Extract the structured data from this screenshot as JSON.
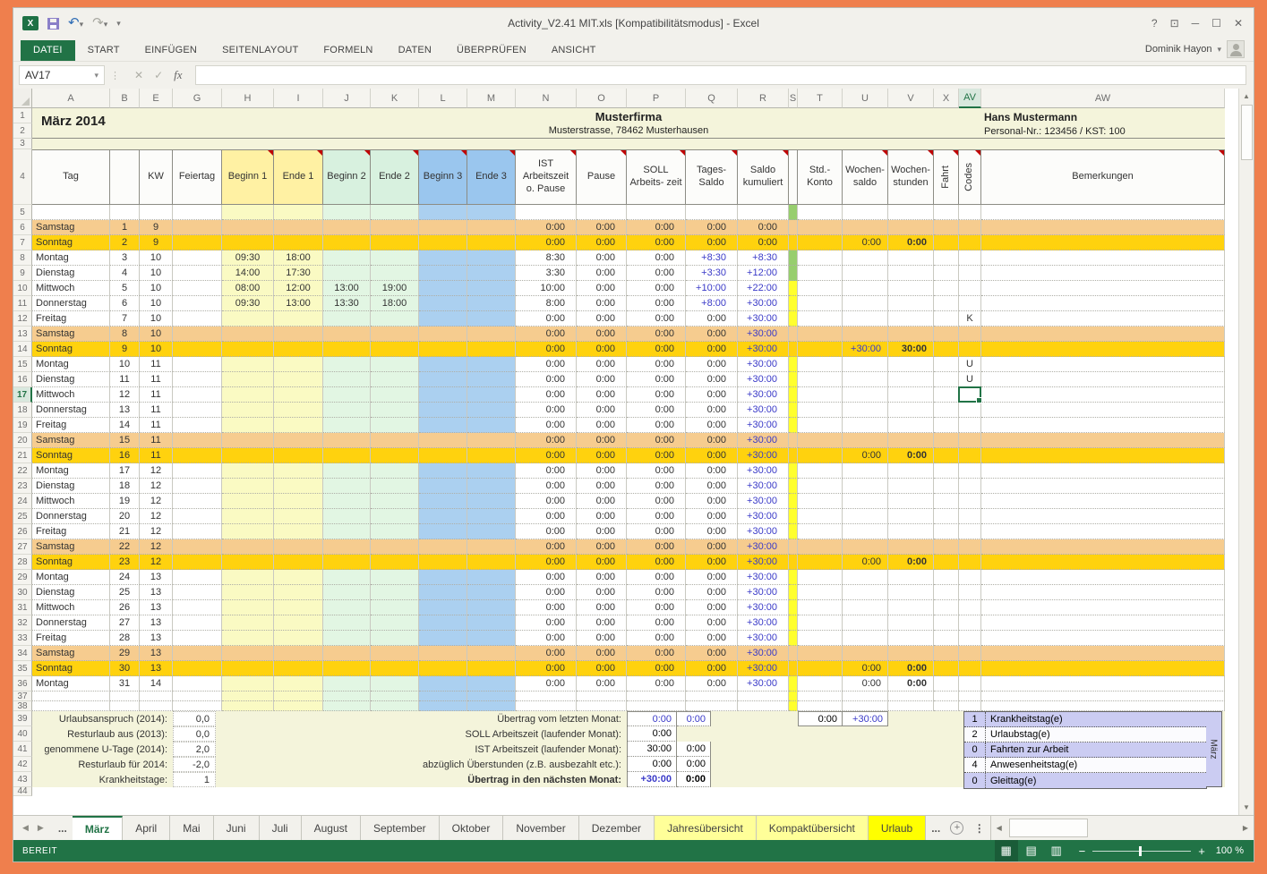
{
  "window": {
    "title": "Activity_V2.41 MIT.xls  [Kompatibilitätsmodus] - Excel",
    "user": "Dominik Hayon",
    "controls": {
      "help": "?",
      "ribbon_options": "⊡",
      "minimize": "─",
      "maximize": "☐",
      "close": "✕"
    }
  },
  "ribbon": {
    "tabs": [
      {
        "label": "DATEI",
        "active": true
      },
      {
        "label": "START",
        "active": false
      },
      {
        "label": "EINFÜGEN",
        "active": false
      },
      {
        "label": "SEITENLAYOUT",
        "active": false
      },
      {
        "label": "FORMELN",
        "active": false
      },
      {
        "label": "DATEN",
        "active": false
      },
      {
        "label": "ÜBERPRÜFEN",
        "active": false
      },
      {
        "label": "ANSICHT",
        "active": false
      }
    ]
  },
  "formula_bar": {
    "name_box": "AV17",
    "cancel": "✕",
    "enter": "✓",
    "fx": "fx",
    "value": ""
  },
  "grid": {
    "column_letters": [
      "A",
      "B",
      "E",
      "G",
      "H",
      "I",
      "J",
      "K",
      "L",
      "M",
      "N",
      "O",
      "P",
      "Q",
      "R",
      "S",
      "T",
      "U",
      "V",
      "X",
      "AV",
      "AW"
    ],
    "selected_column": "AV",
    "selected_row": 17
  },
  "sheet_header": {
    "month": "März 2014",
    "company": "Musterfirma",
    "address": "Musterstrasse, 78462 Musterhausen",
    "employee": "Hans Mustermann",
    "personal_nr": "Personal-Nr.: 123456 / KST: 100"
  },
  "table_headers": [
    "Tag",
    "",
    "KW",
    "Feiertag",
    "Beginn 1",
    "Ende 1",
    "Beginn 2",
    "Ende 2",
    "Beginn 3",
    "Ende 3",
    "IST Arbeitszeit o. Pause",
    "Pause",
    "SOLL Arbeits- zeit",
    "Tages- Saldo",
    "Saldo kumuliert",
    "",
    "Std.- Konto",
    "Wochen- saldo",
    "Wochen- stunden",
    "Fahrt",
    "Codes",
    "Bemerkungen"
  ],
  "days": [
    {
      "day": "Samstag",
      "num": "1",
      "kw": "9",
      "type": "sat",
      "b1": "",
      "e1": "",
      "b2": "",
      "e2": "",
      "ist": "0:00",
      "pa": "0:00",
      "so": "0:00",
      "tg": "0:00",
      "sk": "0:00",
      "ws": "",
      "wh": "",
      "code": "",
      "mark": "g"
    },
    {
      "day": "Sonntag",
      "num": "2",
      "kw": "9",
      "type": "sun",
      "b1": "",
      "e1": "",
      "b2": "",
      "e2": "",
      "ist": "0:00",
      "pa": "0:00",
      "so": "0:00",
      "tg": "0:00",
      "sk": "0:00",
      "ws": "0:00",
      "wh": "0:00",
      "code": "",
      "mark": "g"
    },
    {
      "day": "Montag",
      "num": "3",
      "kw": "10",
      "type": "wd",
      "b1": "09:30",
      "e1": "18:00",
      "b2": "",
      "e2": "",
      "ist": "8:30",
      "pa": "0:00",
      "so": "0:00",
      "tg": "+8:30",
      "sk": "+8:30",
      "ws": "",
      "wh": "",
      "code": "",
      "mark": "g"
    },
    {
      "day": "Dienstag",
      "num": "4",
      "kw": "10",
      "type": "wd",
      "b1": "14:00",
      "e1": "17:30",
      "b2": "",
      "e2": "",
      "ist": "3:30",
      "pa": "0:00",
      "so": "0:00",
      "tg": "+3:30",
      "sk": "+12:00",
      "ws": "",
      "wh": "",
      "code": "",
      "mark": "g"
    },
    {
      "day": "Mittwoch",
      "num": "5",
      "kw": "10",
      "type": "wd",
      "b1": "08:00",
      "e1": "12:00",
      "b2": "13:00",
      "e2": "19:00",
      "ist": "10:00",
      "pa": "0:00",
      "so": "0:00",
      "tg": "+10:00",
      "sk": "+22:00",
      "ws": "",
      "wh": "",
      "code": "",
      "mark": "y"
    },
    {
      "day": "Donnerstag",
      "num": "6",
      "kw": "10",
      "type": "wd",
      "b1": "09:30",
      "e1": "13:00",
      "b2": "13:30",
      "e2": "18:00",
      "ist": "8:00",
      "pa": "0:00",
      "so": "0:00",
      "tg": "+8:00",
      "sk": "+30:00",
      "ws": "",
      "wh": "",
      "code": "",
      "mark": "y"
    },
    {
      "day": "Freitag",
      "num": "7",
      "kw": "10",
      "type": "wd",
      "b1": "",
      "e1": "",
      "b2": "",
      "e2": "",
      "ist": "0:00",
      "pa": "0:00",
      "so": "0:00",
      "tg": "0:00",
      "sk": "+30:00",
      "ws": "",
      "wh": "",
      "code": "K",
      "mark": "y"
    },
    {
      "day": "Samstag",
      "num": "8",
      "kw": "10",
      "type": "sat",
      "b1": "",
      "e1": "",
      "b2": "",
      "e2": "",
      "ist": "0:00",
      "pa": "0:00",
      "so": "0:00",
      "tg": "0:00",
      "sk": "+30:00",
      "ws": "",
      "wh": "",
      "code": "",
      "mark": "y"
    },
    {
      "day": "Sonntag",
      "num": "9",
      "kw": "10",
      "type": "sun",
      "b1": "",
      "e1": "",
      "b2": "",
      "e2": "",
      "ist": "0:00",
      "pa": "0:00",
      "so": "0:00",
      "tg": "0:00",
      "sk": "+30:00",
      "ws": "+30:00",
      "wh": "30:00",
      "code": "",
      "mark": "y"
    },
    {
      "day": "Montag",
      "num": "10",
      "kw": "11",
      "type": "wd",
      "b1": "",
      "e1": "",
      "b2": "",
      "e2": "",
      "ist": "0:00",
      "pa": "0:00",
      "so": "0:00",
      "tg": "0:00",
      "sk": "+30:00",
      "ws": "",
      "wh": "",
      "code": "U",
      "mark": "y"
    },
    {
      "day": "Dienstag",
      "num": "11",
      "kw": "11",
      "type": "wd",
      "b1": "",
      "e1": "",
      "b2": "",
      "e2": "",
      "ist": "0:00",
      "pa": "0:00",
      "so": "0:00",
      "tg": "0:00",
      "sk": "+30:00",
      "ws": "",
      "wh": "",
      "code": "U",
      "mark": "y"
    },
    {
      "day": "Mittwoch",
      "num": "12",
      "kw": "11",
      "type": "wd",
      "b1": "",
      "e1": "",
      "b2": "",
      "e2": "",
      "ist": "0:00",
      "pa": "0:00",
      "so": "0:00",
      "tg": "0:00",
      "sk": "+30:00",
      "ws": "",
      "wh": "",
      "code": "",
      "mark": "y"
    },
    {
      "day": "Donnerstag",
      "num": "13",
      "kw": "11",
      "type": "wd",
      "b1": "",
      "e1": "",
      "b2": "",
      "e2": "",
      "ist": "0:00",
      "pa": "0:00",
      "so": "0:00",
      "tg": "0:00",
      "sk": "+30:00",
      "ws": "",
      "wh": "",
      "code": "",
      "mark": "y"
    },
    {
      "day": "Freitag",
      "num": "14",
      "kw": "11",
      "type": "wd",
      "b1": "",
      "e1": "",
      "b2": "",
      "e2": "",
      "ist": "0:00",
      "pa": "0:00",
      "so": "0:00",
      "tg": "0:00",
      "sk": "+30:00",
      "ws": "",
      "wh": "",
      "code": "",
      "mark": "y"
    },
    {
      "day": "Samstag",
      "num": "15",
      "kw": "11",
      "type": "sat",
      "b1": "",
      "e1": "",
      "b2": "",
      "e2": "",
      "ist": "0:00",
      "pa": "0:00",
      "so": "0:00",
      "tg": "0:00",
      "sk": "+30:00",
      "ws": "",
      "wh": "",
      "code": "",
      "mark": "y"
    },
    {
      "day": "Sonntag",
      "num": "16",
      "kw": "11",
      "type": "sun",
      "b1": "",
      "e1": "",
      "b2": "",
      "e2": "",
      "ist": "0:00",
      "pa": "0:00",
      "so": "0:00",
      "tg": "0:00",
      "sk": "+30:00",
      "ws": "0:00",
      "wh": "0:00",
      "code": "",
      "mark": "y"
    },
    {
      "day": "Montag",
      "num": "17",
      "kw": "12",
      "type": "wd",
      "b1": "",
      "e1": "",
      "b2": "",
      "e2": "",
      "ist": "0:00",
      "pa": "0:00",
      "so": "0:00",
      "tg": "0:00",
      "sk": "+30:00",
      "ws": "",
      "wh": "",
      "code": "",
      "mark": "y"
    },
    {
      "day": "Dienstag",
      "num": "18",
      "kw": "12",
      "type": "wd",
      "b1": "",
      "e1": "",
      "b2": "",
      "e2": "",
      "ist": "0:00",
      "pa": "0:00",
      "so": "0:00",
      "tg": "0:00",
      "sk": "+30:00",
      "ws": "",
      "wh": "",
      "code": "",
      "mark": "y"
    },
    {
      "day": "Mittwoch",
      "num": "19",
      "kw": "12",
      "type": "wd",
      "b1": "",
      "e1": "",
      "b2": "",
      "e2": "",
      "ist": "0:00",
      "pa": "0:00",
      "so": "0:00",
      "tg": "0:00",
      "sk": "+30:00",
      "ws": "",
      "wh": "",
      "code": "",
      "mark": "y"
    },
    {
      "day": "Donnerstag",
      "num": "20",
      "kw": "12",
      "type": "wd",
      "b1": "",
      "e1": "",
      "b2": "",
      "e2": "",
      "ist": "0:00",
      "pa": "0:00",
      "so": "0:00",
      "tg": "0:00",
      "sk": "+30:00",
      "ws": "",
      "wh": "",
      "code": "",
      "mark": "y"
    },
    {
      "day": "Freitag",
      "num": "21",
      "kw": "12",
      "type": "wd",
      "b1": "",
      "e1": "",
      "b2": "",
      "e2": "",
      "ist": "0:00",
      "pa": "0:00",
      "so": "0:00",
      "tg": "0:00",
      "sk": "+30:00",
      "ws": "",
      "wh": "",
      "code": "",
      "mark": "y"
    },
    {
      "day": "Samstag",
      "num": "22",
      "kw": "12",
      "type": "sat",
      "b1": "",
      "e1": "",
      "b2": "",
      "e2": "",
      "ist": "0:00",
      "pa": "0:00",
      "so": "0:00",
      "tg": "0:00",
      "sk": "+30:00",
      "ws": "",
      "wh": "",
      "code": "",
      "mark": "y"
    },
    {
      "day": "Sonntag",
      "num": "23",
      "kw": "12",
      "type": "sun",
      "b1": "",
      "e1": "",
      "b2": "",
      "e2": "",
      "ist": "0:00",
      "pa": "0:00",
      "so": "0:00",
      "tg": "0:00",
      "sk": "+30:00",
      "ws": "0:00",
      "wh": "0:00",
      "code": "",
      "mark": "y"
    },
    {
      "day": "Montag",
      "num": "24",
      "kw": "13",
      "type": "wd",
      "b1": "",
      "e1": "",
      "b2": "",
      "e2": "",
      "ist": "0:00",
      "pa": "0:00",
      "so": "0:00",
      "tg": "0:00",
      "sk": "+30:00",
      "ws": "",
      "wh": "",
      "code": "",
      "mark": "y"
    },
    {
      "day": "Dienstag",
      "num": "25",
      "kw": "13",
      "type": "wd",
      "b1": "",
      "e1": "",
      "b2": "",
      "e2": "",
      "ist": "0:00",
      "pa": "0:00",
      "so": "0:00",
      "tg": "0:00",
      "sk": "+30:00",
      "ws": "",
      "wh": "",
      "code": "",
      "mark": "y"
    },
    {
      "day": "Mittwoch",
      "num": "26",
      "kw": "13",
      "type": "wd",
      "b1": "",
      "e1": "",
      "b2": "",
      "e2": "",
      "ist": "0:00",
      "pa": "0:00",
      "so": "0:00",
      "tg": "0:00",
      "sk": "+30:00",
      "ws": "",
      "wh": "",
      "code": "",
      "mark": "y"
    },
    {
      "day": "Donnerstag",
      "num": "27",
      "kw": "13",
      "type": "wd",
      "b1": "",
      "e1": "",
      "b2": "",
      "e2": "",
      "ist": "0:00",
      "pa": "0:00",
      "so": "0:00",
      "tg": "0:00",
      "sk": "+30:00",
      "ws": "",
      "wh": "",
      "code": "",
      "mark": "y"
    },
    {
      "day": "Freitag",
      "num": "28",
      "kw": "13",
      "type": "wd",
      "b1": "",
      "e1": "",
      "b2": "",
      "e2": "",
      "ist": "0:00",
      "pa": "0:00",
      "so": "0:00",
      "tg": "0:00",
      "sk": "+30:00",
      "ws": "",
      "wh": "",
      "code": "",
      "mark": "y"
    },
    {
      "day": "Samstag",
      "num": "29",
      "kw": "13",
      "type": "sat",
      "b1": "",
      "e1": "",
      "b2": "",
      "e2": "",
      "ist": "0:00",
      "pa": "0:00",
      "so": "0:00",
      "tg": "0:00",
      "sk": "+30:00",
      "ws": "",
      "wh": "",
      "code": "",
      "mark": "y"
    },
    {
      "day": "Sonntag",
      "num": "30",
      "kw": "13",
      "type": "sun",
      "b1": "",
      "e1": "",
      "b2": "",
      "e2": "",
      "ist": "0:00",
      "pa": "0:00",
      "so": "0:00",
      "tg": "0:00",
      "sk": "+30:00",
      "ws": "0:00",
      "wh": "0:00",
      "code": "",
      "mark": "y"
    },
    {
      "day": "Montag",
      "num": "31",
      "kw": "14",
      "type": "wd",
      "b1": "",
      "e1": "",
      "b2": "",
      "e2": "",
      "ist": "0:00",
      "pa": "0:00",
      "so": "0:00",
      "tg": "0:00",
      "sk": "+30:00",
      "ws": "0:00",
      "wh": "0:00",
      "code": "",
      "mark": "y"
    }
  ],
  "summary_left": [
    {
      "label": "Urlaubsanspruch (2014)",
      "value": "0,0"
    },
    {
      "label": "Resturlaub aus (2013)",
      "value": "0,0"
    },
    {
      "label": "genommene U-Tage (2014)",
      "value": "2,0"
    },
    {
      "label": "Resturlaub für 2014",
      "value": "-2,0"
    },
    {
      "label": "Krankheitstage",
      "value": "1"
    }
  ],
  "summary_mid": [
    {
      "label": "Übertrag vom letzten Monat:",
      "v1": "0:00",
      "v2": "0:00",
      "c1": "blue",
      "c2": "blue",
      "bold": false
    },
    {
      "label": "SOLL Arbeitszeit (laufender Monat):",
      "v1": "0:00",
      "v2": null,
      "c1": "black",
      "c2": "black",
      "bold": false
    },
    {
      "label": "IST Arbeitszeit (laufender Monat):",
      "v1": "30:00",
      "v2": "0:00",
      "c1": "black",
      "c2": "black",
      "bold": false
    },
    {
      "label": "abzüglich Überstunden (z.B. ausbezahlt etc.):",
      "v1": "0:00",
      "v2": "0:00",
      "c1": "black",
      "c2": "black",
      "bold": false
    },
    {
      "label": "Übertrag in den nächsten Monat:",
      "v1": "+30:00",
      "v2": "0:00",
      "c1": "blue",
      "c2": "black",
      "bold": true
    }
  ],
  "std_box": {
    "v1": "0:00",
    "v2": "+30:00"
  },
  "legend": {
    "rows": [
      {
        "count": "1",
        "label": "Krankheitstag(e)"
      },
      {
        "count": "2",
        "label": "Urlaubstag(e)"
      },
      {
        "count": "0",
        "label": "Fahrten zur Arbeit"
      },
      {
        "count": "4",
        "label": "Anwesenheitstag(e)"
      },
      {
        "count": "0",
        "label": "Gleittag(e)"
      }
    ],
    "side_label": "März"
  },
  "sheet_tabs": {
    "ellipsis_left": "...",
    "ellipsis_right": "...",
    "tabs": [
      {
        "label": "März",
        "state": "active"
      },
      {
        "label": "April",
        "state": "normal"
      },
      {
        "label": "Mai",
        "state": "normal"
      },
      {
        "label": "Juni",
        "state": "normal"
      },
      {
        "label": "Juli",
        "state": "normal"
      },
      {
        "label": "August",
        "state": "normal"
      },
      {
        "label": "September",
        "state": "normal"
      },
      {
        "label": "Oktober",
        "state": "normal"
      },
      {
        "label": "November",
        "state": "normal"
      },
      {
        "label": "Dezember",
        "state": "normal"
      },
      {
        "label": "Jahresübersicht",
        "state": "yellow"
      },
      {
        "label": "Kompaktübersicht",
        "state": "yellow"
      },
      {
        "label": "Urlaub",
        "state": "bright"
      }
    ],
    "new_sheet": "+"
  },
  "status_bar": {
    "mode": "BEREIT",
    "zoom": "100 %"
  },
  "colors": {
    "accent_green": "#217346",
    "frame_orange": "#EF7F4D",
    "saturday_row": "#F6CC8F",
    "sunday_row": "#FFD20E",
    "col_yellow": "#FAFAC3",
    "col_green": "#E2F6E3",
    "col_blue": "#ABD0F0",
    "legend_purple": "#CBCCF2",
    "saldo_blue": "#3A3AC8",
    "marker_green": "#97CE6E",
    "marker_yellow": "#FFFF2E"
  }
}
